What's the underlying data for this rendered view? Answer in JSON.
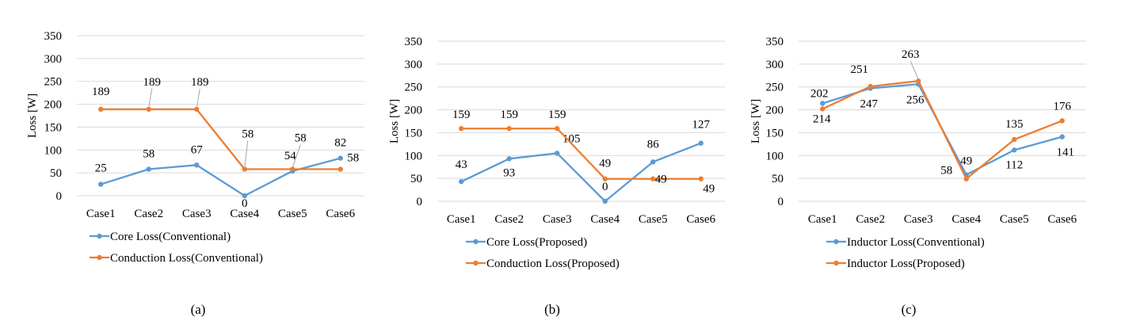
{
  "chart_data": [
    {
      "type": "line",
      "caption": "(a)",
      "ylabel": "Loss [W]",
      "ylim": [
        0,
        350
      ],
      "yticks": [
        0,
        50,
        100,
        150,
        200,
        250,
        300,
        350
      ],
      "grid": true,
      "legend": "bottom-left",
      "categories": [
        "Case1",
        "Case2",
        "Case3",
        "Case4",
        "Case5",
        "Case6"
      ],
      "series": [
        {
          "name": "Core Loss(Conventional)",
          "color": "#5B9BD5",
          "values": [
            25,
            58,
            67,
            0,
            54,
            82
          ]
        },
        {
          "name": "Conduction Loss(Conventional)",
          "color": "#ED7D31",
          "values": [
            189,
            189,
            189,
            58,
            58,
            58
          ]
        }
      ]
    },
    {
      "type": "line",
      "caption": "(b)",
      "ylabel": "Loss [W]",
      "ylim": [
        0,
        350
      ],
      "yticks": [
        0,
        50,
        100,
        150,
        200,
        250,
        300,
        350
      ],
      "grid": true,
      "legend": "bottom-left",
      "categories": [
        "Case1",
        "Case2",
        "Case3",
        "Case4",
        "Case5",
        "Case6"
      ],
      "series": [
        {
          "name": "Core Loss(Proposed)",
          "color": "#5B9BD5",
          "values": [
            43,
            93,
            105,
            0,
            86,
            127
          ]
        },
        {
          "name": "Conduction Loss(Proposed)",
          "color": "#ED7D31",
          "values": [
            159,
            159,
            159,
            49,
            49,
            49
          ]
        }
      ]
    },
    {
      "type": "line",
      "caption": "(c)",
      "ylabel": "Loss [W]",
      "ylim": [
        0,
        350
      ],
      "yticks": [
        0,
        50,
        100,
        150,
        200,
        250,
        300,
        350
      ],
      "grid": true,
      "legend": "bottom-left",
      "categories": [
        "Case1",
        "Case2",
        "Case3",
        "Case4",
        "Case5",
        "Case6"
      ],
      "series": [
        {
          "name": "Inductor Loss(Conventional)",
          "color": "#5B9BD5",
          "values": [
            214,
            247,
            256,
            58,
            112,
            141
          ]
        },
        {
          "name": "Inductor Loss(Proposed)",
          "color": "#ED7D31",
          "values": [
            202,
            251,
            263,
            49,
            135,
            176
          ]
        }
      ]
    }
  ]
}
